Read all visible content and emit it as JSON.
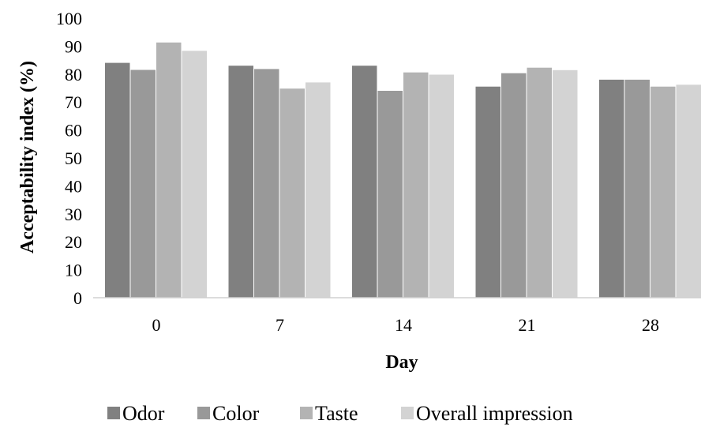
{
  "chart_data": {
    "type": "bar",
    "categories": [
      "0",
      "7",
      "14",
      "21",
      "28"
    ],
    "series": [
      {
        "name": "Odor",
        "values": [
          84,
          83,
          83,
          75.5,
          78
        ],
        "color": "#808080"
      },
      {
        "name": "Color",
        "values": [
          81.5,
          81.8,
          74,
          80.3,
          78
        ],
        "color": "#999999"
      },
      {
        "name": "Taste",
        "values": [
          91.3,
          74.8,
          80.6,
          82.3,
          75.5
        ],
        "color": "#b3b3b3"
      },
      {
        "name": "Overall impression",
        "values": [
          88.3,
          77,
          79.8,
          81.4,
          76.2
        ],
        "color": "#d3d3d3"
      }
    ],
    "xlabel": "Day",
    "ylabel": "Acceptability index (%)",
    "ylim": [
      0,
      100
    ],
    "yticks": [
      0,
      10,
      20,
      30,
      40,
      50,
      60,
      70,
      80,
      90,
      100
    ],
    "grid": false,
    "legend_position": "bottom"
  }
}
